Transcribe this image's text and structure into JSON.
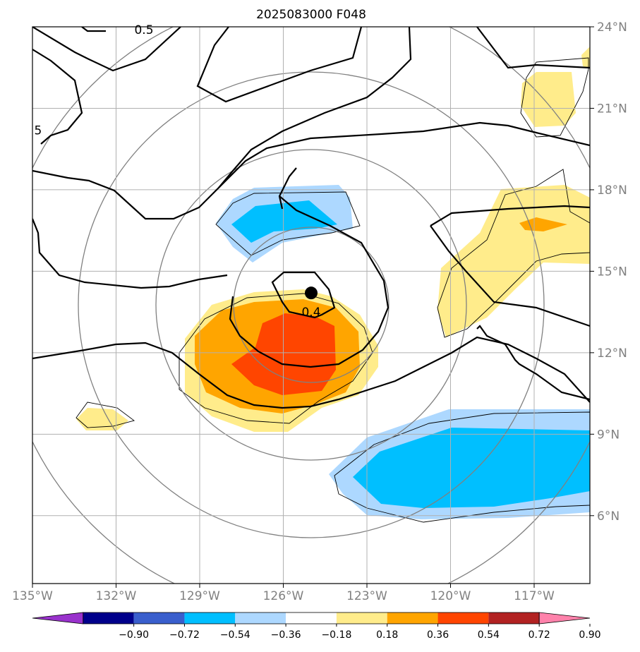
{
  "title": "2025083000 F048",
  "map": {
    "lon_range": [
      -135,
      -115
    ],
    "lat_range": [
      3.5,
      24
    ],
    "lon_ticks": [
      {
        "value": -135,
        "label": "135°W"
      },
      {
        "value": -132,
        "label": "132°W"
      },
      {
        "value": -129,
        "label": "129°W"
      },
      {
        "value": -126,
        "label": "126°W"
      },
      {
        "value": -123,
        "label": "123°W"
      },
      {
        "value": -120,
        "label": "120°W"
      },
      {
        "value": -117,
        "label": "117°W"
      }
    ],
    "lat_ticks": [
      {
        "value": 24,
        "label": "24°N"
      },
      {
        "value": 21,
        "label": "21°N"
      },
      {
        "value": 18,
        "label": "18°N"
      },
      {
        "value": 15,
        "label": "15°N"
      },
      {
        "value": 12,
        "label": "12°N"
      },
      {
        "value": 9,
        "label": "9°N"
      },
      {
        "value": 6,
        "label": "6°N"
      }
    ],
    "storm_center": {
      "lon": -125,
      "lat": 14.2
    },
    "contour_labels": [
      {
        "text": "0.4",
        "lon": -125,
        "lat": 13.5
      },
      {
        "text": "0.5",
        "lon": -131,
        "lat": 23.9
      },
      {
        "text": "5",
        "lon": -134.8,
        "lat": 20.2
      }
    ]
  },
  "colorbar": {
    "levels": [
      "−0.90",
      "−0.72",
      "−0.54",
      "−0.36",
      "−0.18",
      "0.18",
      "0.36",
      "0.54",
      "0.72",
      "0.90"
    ],
    "colors": [
      "#9932cc",
      "#00008b",
      "#3a5fcd",
      "#00bfff",
      "#add8ff",
      "#ffffff",
      "#ffec8b",
      "#ffa500",
      "#ff4500",
      "#b22222",
      "#ff82ab"
    ]
  }
}
